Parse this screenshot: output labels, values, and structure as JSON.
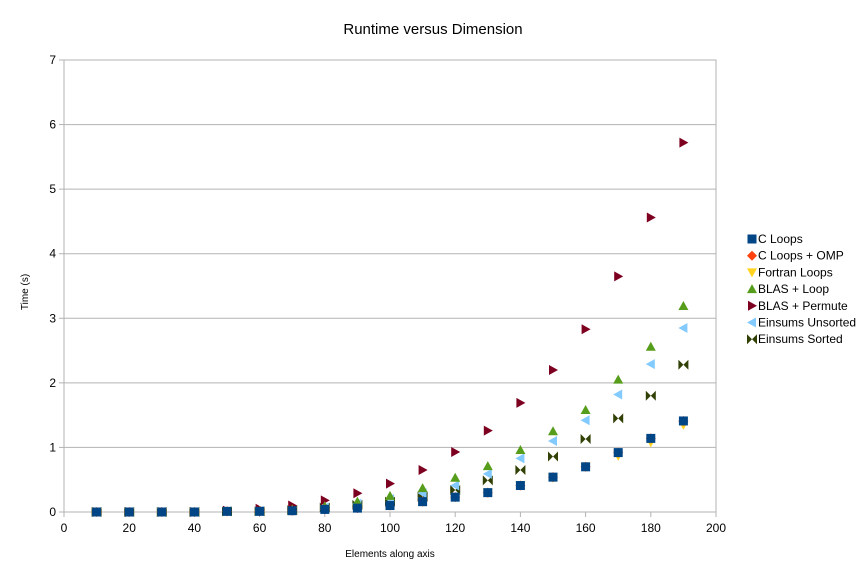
{
  "chart_data": {
    "type": "scatter",
    "title": "Runtime versus Dimension",
    "xlabel": "Elements along axis",
    "ylabel": "Time (s)",
    "xlim": [
      0,
      200
    ],
    "ylim": [
      0,
      7
    ],
    "xticks": [
      0,
      20,
      40,
      60,
      80,
      100,
      120,
      140,
      160,
      180,
      200
    ],
    "yticks": [
      0,
      1,
      2,
      3,
      4,
      5,
      6,
      7
    ],
    "grid": "horizontal",
    "legend_position": "right",
    "x": [
      10,
      20,
      30,
      40,
      50,
      60,
      70,
      80,
      90,
      100,
      110,
      120,
      130,
      140,
      150,
      160,
      170,
      180,
      190
    ],
    "series": [
      {
        "name": "C Loops",
        "marker": "square",
        "color": "#004586",
        "values": [
          0.0,
          0.0,
          0.0,
          0.0,
          0.01,
          0.01,
          0.02,
          0.04,
          0.06,
          0.1,
          0.16,
          0.23,
          0.3,
          0.41,
          0.54,
          0.7,
          0.92,
          1.14,
          1.41
        ]
      },
      {
        "name": "C Loops + OMP",
        "marker": "diamond",
        "color": "#ff420e",
        "values": [
          0.0,
          0.0,
          0.0,
          0.0,
          0.01,
          0.01,
          0.02,
          0.04,
          0.06,
          0.1,
          0.16,
          0.23,
          0.3,
          0.41,
          0.54,
          0.7,
          0.92,
          1.14,
          1.41
        ]
      },
      {
        "name": "Fortran Loops",
        "marker": "triangle-down",
        "color": "#ffd320",
        "values": [
          0.0,
          0.0,
          0.0,
          0.0,
          0.01,
          0.01,
          0.02,
          0.04,
          0.06,
          0.1,
          0.16,
          0.23,
          0.3,
          0.41,
          0.53,
          0.7,
          0.87,
          1.08,
          1.35
        ]
      },
      {
        "name": "BLAS + Loop",
        "marker": "triangle-up",
        "color": "#579d1c",
        "values": [
          0.0,
          0.0,
          0.0,
          0.0,
          0.01,
          0.02,
          0.04,
          0.09,
          0.16,
          0.25,
          0.37,
          0.53,
          0.71,
          0.96,
          1.25,
          1.58,
          2.05,
          2.56,
          3.19
        ]
      },
      {
        "name": "BLAS + Permute",
        "marker": "triangle-right",
        "color": "#7e0021",
        "values": [
          0.0,
          0.0,
          0.0,
          0.0,
          0.02,
          0.05,
          0.1,
          0.18,
          0.29,
          0.44,
          0.65,
          0.93,
          1.26,
          1.69,
          2.2,
          2.83,
          3.65,
          4.56,
          5.72
        ]
      },
      {
        "name": "Einsums Unsorted",
        "marker": "triangle-left",
        "color": "#83caff",
        "values": [
          0.0,
          0.0,
          0.0,
          0.0,
          0.01,
          0.02,
          0.03,
          0.07,
          0.13,
          0.2,
          0.29,
          0.41,
          0.59,
          0.83,
          1.1,
          1.42,
          1.82,
          2.29,
          2.85
        ]
      },
      {
        "name": "Einsums Sorted",
        "marker": "bowtie",
        "color": "#314004",
        "values": [
          0.0,
          0.0,
          0.0,
          0.0,
          0.01,
          0.01,
          0.03,
          0.07,
          0.11,
          0.16,
          0.24,
          0.34,
          0.49,
          0.65,
          0.86,
          1.13,
          1.45,
          1.8,
          2.28
        ]
      }
    ]
  }
}
